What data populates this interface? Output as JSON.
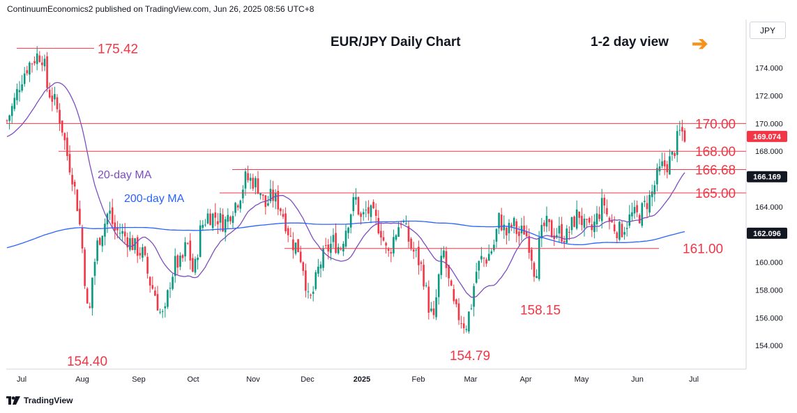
{
  "header": {
    "publisher_text": "ContinuumEconomics2 published on TradingView.com, Jun 26, 2025 08:56 UTC+8"
  },
  "footer": {
    "brand": "TradingView"
  },
  "currency_label": "JPY",
  "chart_data": {
    "type": "candlestick",
    "title": "EUR/JPY Daily Chart",
    "subtitle": "1-2 day view",
    "ylim": [
      152.3,
      177.5
    ],
    "y_ticks": [
      "154.000",
      "156.000",
      "158.000",
      "160.000",
      "162.000",
      "164.000",
      "166.000",
      "168.000",
      "170.000",
      "172.000",
      "174.000"
    ],
    "x_ticks": [
      "Jul",
      "Aug",
      "Sep",
      "Oct",
      "Nov",
      "Dec",
      "2025",
      "Feb",
      "Mar",
      "Apr",
      "May",
      "Jun",
      "Jul"
    ],
    "levels": [
      {
        "value": 175.42,
        "label": "175.42",
        "span": "short"
      },
      {
        "value": 170.0,
        "label": "170.00",
        "span": "full"
      },
      {
        "value": 168.0,
        "label": "168.00",
        "span": "from-aug"
      },
      {
        "value": 166.68,
        "label": "166.68",
        "span": "from-oct"
      },
      {
        "value": 165.0,
        "label": "165.00",
        "span": "from-oct"
      },
      {
        "value": 161.0,
        "label": "161.00",
        "span": "from-nov"
      }
    ],
    "lows": [
      {
        "label": "154.40",
        "value": 154.4
      },
      {
        "label": "154.79",
        "value": 154.79
      },
      {
        "label": "158.15",
        "value": 158.15
      }
    ],
    "moving_averages": [
      {
        "name": "20-day MA",
        "color": "#7c4dbf",
        "last": "166.169"
      },
      {
        "name": "200-day MA",
        "color": "#2962ff",
        "last": "162.096"
      }
    ],
    "last_price": "169.074",
    "colors": {
      "up": "#089981",
      "down": "#f23645",
      "level": "#f23645"
    }
  }
}
